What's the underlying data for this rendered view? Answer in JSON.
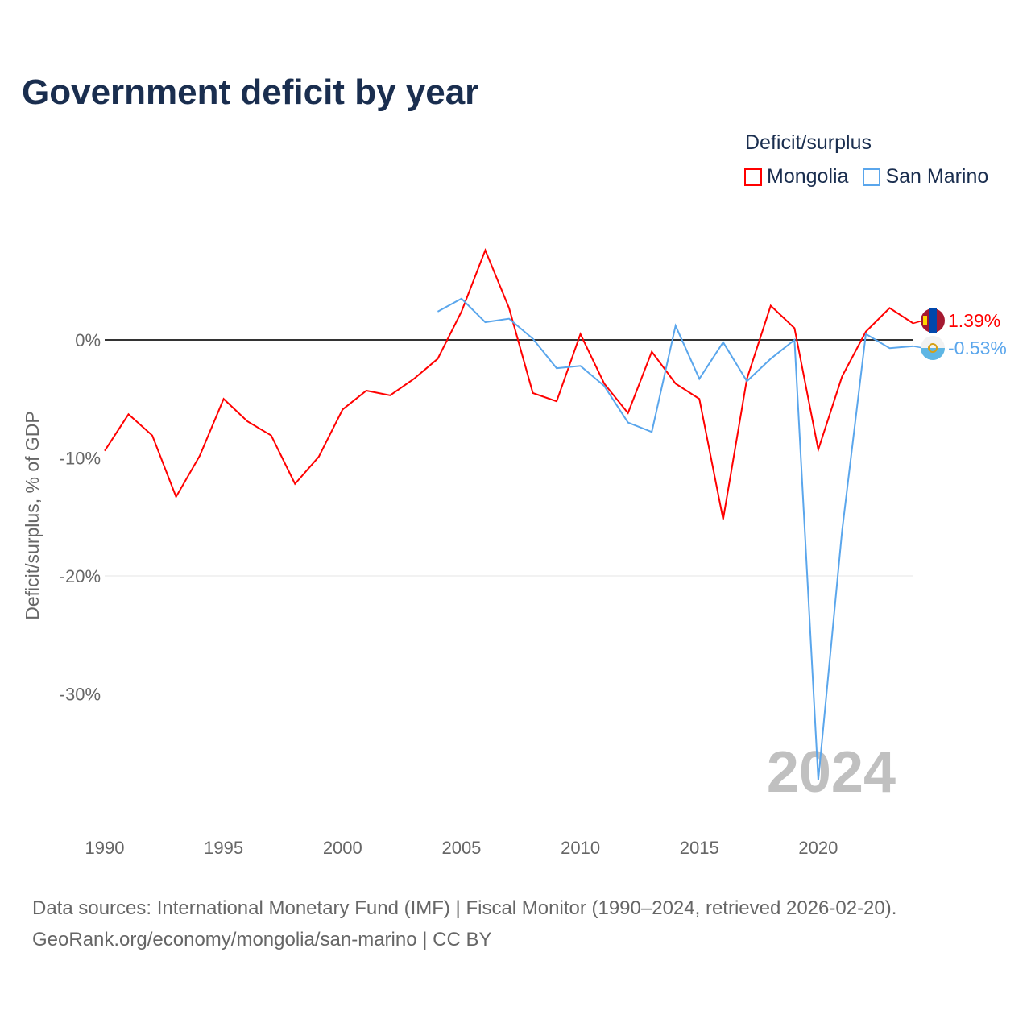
{
  "title": "Government deficit by year",
  "legend": {
    "title": "Deficit/surplus",
    "items": [
      "Mongolia",
      "San Marino"
    ]
  },
  "colors": {
    "Mongolia": "#ff0000",
    "San Marino": "#5aa6ec"
  },
  "source": {
    "line1": "Data sources: International Monetary Fund (IMF) | Fiscal Monitor (1990–2024, retrieved 2026-02-20).",
    "line2": "GeoRank.org/economy/mongolia/san-marino | CC BY"
  },
  "chart_data": {
    "type": "line",
    "title": "Government deficit by year",
    "ylabel": "Deficit/surplus, % of GDP",
    "xlabel": "",
    "year_label": "2024",
    "xlim": [
      1990,
      2024
    ],
    "ylim": [
      -40,
      10
    ],
    "x_ticks": [
      1990,
      1995,
      2000,
      2005,
      2010,
      2015,
      2020
    ],
    "y_ticks": [
      {
        "v": 0,
        "label": "0%"
      },
      {
        "v": -10,
        "label": "-10%"
      },
      {
        "v": -20,
        "label": "-20%"
      },
      {
        "v": -30,
        "label": "-30%"
      }
    ],
    "series": [
      {
        "name": "Mongolia",
        "end_label": "1.39%",
        "start": 1990,
        "values": [
          -9.4,
          -6.3,
          -8.1,
          -13.3,
          -9.8,
          -5.0,
          -6.9,
          -8.1,
          -12.2,
          -9.9,
          -5.9,
          -4.3,
          -4.7,
          -3.3,
          -1.6,
          2.4,
          7.6,
          2.7,
          -4.5,
          -5.2,
          0.5,
          -3.7,
          -6.2,
          -1.0,
          -3.7,
          -5.0,
          -15.2,
          -3.3,
          2.9,
          1.0,
          -9.3,
          -3.1,
          0.7,
          2.7,
          1.39
        ]
      },
      {
        "name": "San Marino",
        "end_label": "-0.53%",
        "start": 2004,
        "values": [
          2.4,
          3.5,
          1.5,
          1.8,
          0.1,
          -2.4,
          -2.2,
          -3.9,
          -7.0,
          -7.8,
          1.2,
          -3.3,
          -0.2,
          -3.5,
          -1.6,
          0.0,
          -37.3,
          -16.2,
          0.5,
          -0.7,
          -0.53
        ]
      }
    ]
  }
}
